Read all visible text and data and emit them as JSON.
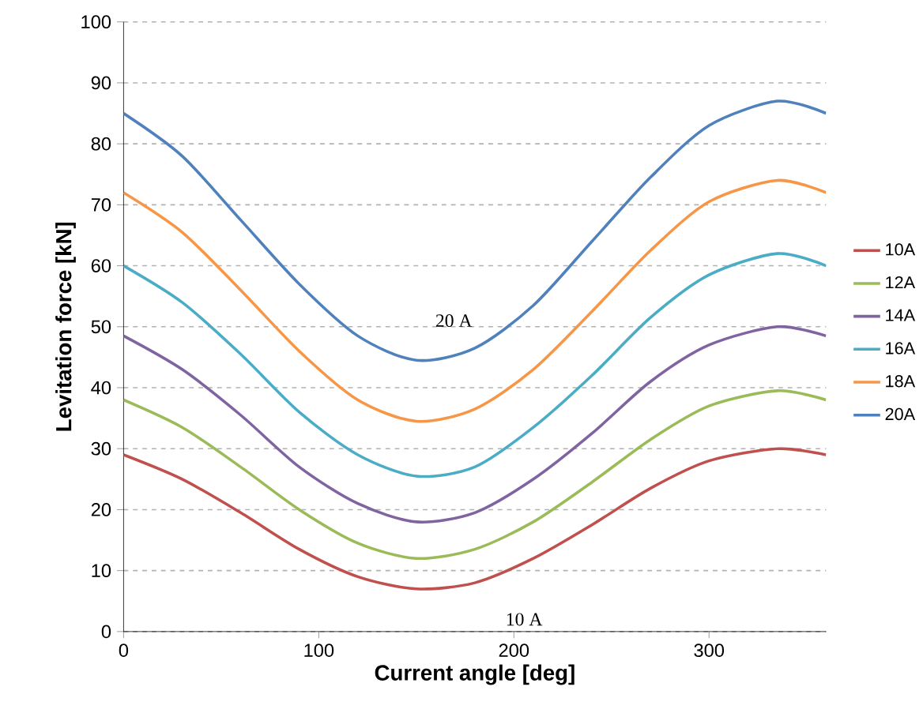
{
  "chart_data": {
    "type": "line",
    "xlabel": "Current angle [deg]",
    "ylabel": "Levitation force [kN]",
    "x": [
      0,
      30,
      60,
      90,
      120,
      150,
      180,
      210,
      240,
      270,
      300,
      335,
      360
    ],
    "series": [
      {
        "name": "10A",
        "color": "#c0504d",
        "values": [
          29,
          25,
          19.5,
          13.5,
          9,
          7,
          8,
          12,
          17.5,
          23.5,
          28,
          30,
          29
        ]
      },
      {
        "name": "12A",
        "color": "#9bbb59",
        "values": [
          38,
          33.5,
          27,
          20,
          14.5,
          12,
          13.5,
          18,
          24.5,
          31.5,
          37,
          39.5,
          38
        ]
      },
      {
        "name": "14A",
        "color": "#8064a2",
        "values": [
          48.5,
          43,
          35.5,
          27,
          21,
          18,
          19.5,
          25,
          32.5,
          41,
          47,
          50,
          48.5
        ]
      },
      {
        "name": "16A",
        "color": "#4bacc6",
        "values": [
          60,
          54,
          45.5,
          36,
          29,
          25.5,
          27,
          33.5,
          42,
          51.5,
          58.5,
          62,
          60
        ]
      },
      {
        "name": "18A",
        "color": "#f79646",
        "values": [
          72,
          65.5,
          56,
          46,
          38,
          34.5,
          36.5,
          43,
          52.5,
          62.5,
          70.5,
          74,
          72
        ]
      },
      {
        "name": "20A",
        "color": "#4f81bd",
        "values": [
          85,
          78,
          67.5,
          57,
          48.5,
          44.5,
          46.5,
          53.5,
          64,
          74.5,
          83,
          87,
          85
        ]
      }
    ],
    "xlim": [
      0,
      360
    ],
    "xticks": [
      0,
      100,
      200,
      300
    ],
    "ylim": [
      0,
      100
    ],
    "yticks": [
      0,
      10,
      20,
      30,
      40,
      50,
      60,
      70,
      80,
      90,
      100
    ],
    "grid": "y",
    "legend": "right",
    "marker": "none",
    "line_style": "solid",
    "annotations": [
      "20 A",
      "10 A"
    ]
  }
}
